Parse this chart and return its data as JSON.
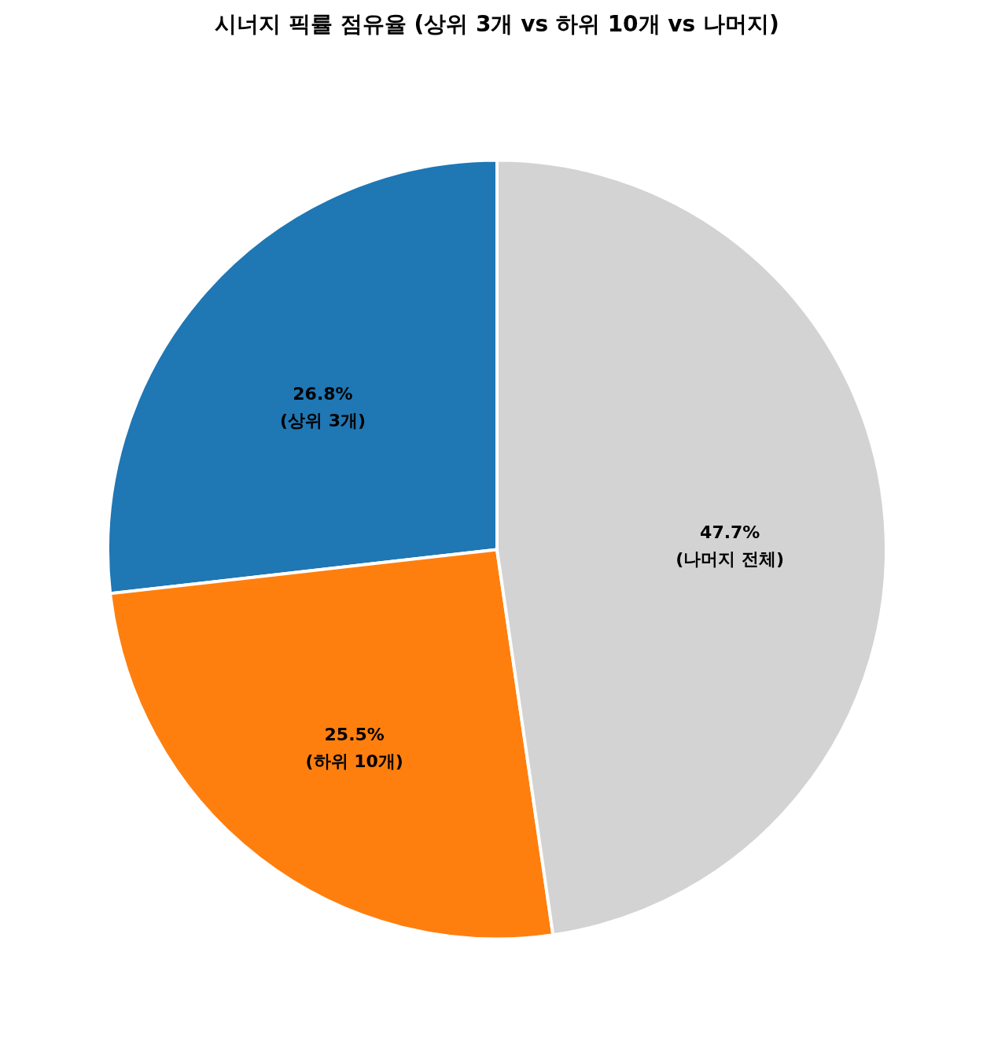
{
  "chart_data": {
    "type": "pie",
    "title": "시너지 픽률 점유율 (상위 3개 vs 하위 10개 vs 나머지)",
    "categories": [
      "(상위 3개)",
      "(하위 10개)",
      "(나머지 전체)"
    ],
    "values": [
      26.8,
      25.5,
      47.7
    ],
    "colors": [
      "#1f77b4",
      "#ff7f0e",
      "#d3d3d3"
    ],
    "value_labels": [
      "26.8%",
      "25.5%",
      "47.7%"
    ],
    "legend": false
  }
}
